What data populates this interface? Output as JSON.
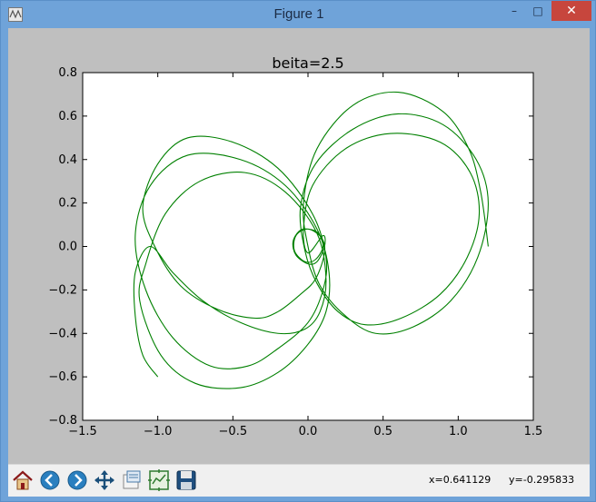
{
  "window": {
    "title": "Figure 1"
  },
  "controls": {
    "minimize": "–",
    "maximize": "□",
    "close": "✕"
  },
  "colors": {
    "line": "#008000",
    "figure_bg": "#bfbfbf",
    "axes_bg": "#ffffff"
  },
  "toolbar": {
    "tools": [
      {
        "name": "home-button",
        "icon": "home-icon"
      },
      {
        "name": "back-button",
        "icon": "arrow-left-icon"
      },
      {
        "name": "forward-button",
        "icon": "arrow-right-icon"
      },
      {
        "name": "pan-button",
        "icon": "move-icon"
      },
      {
        "name": "zoom-button",
        "icon": "zoom-rect-icon"
      },
      {
        "name": "subplots-button",
        "icon": "subplots-icon"
      },
      {
        "name": "save-button",
        "icon": "save-icon"
      }
    ]
  },
  "status": {
    "x_readout": "x=0.641129",
    "y_readout": "y=-0.295833"
  },
  "chart_data": {
    "type": "line",
    "title": "beita=2.5",
    "xlabel": "",
    "ylabel": "",
    "xlim": [
      -1.5,
      1.5
    ],
    "ylim": [
      -0.8,
      0.8
    ],
    "xticks": [
      "−1.5",
      "−1.0",
      "−0.5",
      "0.0",
      "0.5",
      "1.0",
      "1.5"
    ],
    "yticks": [
      "−0.8",
      "−0.6",
      "−0.4",
      "−0.2",
      "0.0",
      "0.2",
      "0.4",
      "0.6",
      "0.8"
    ],
    "grid": false,
    "series": [
      {
        "points": [
          [
            1.2,
            0.0
          ],
          [
            1.15,
            0.25
          ],
          [
            1.07,
            0.45
          ],
          [
            0.9,
            0.62
          ],
          [
            0.6,
            0.71
          ],
          [
            0.3,
            0.65
          ],
          [
            0.06,
            0.45
          ],
          [
            -0.03,
            0.2
          ],
          [
            0.0,
            0.0
          ],
          [
            0.08,
            -0.18
          ],
          [
            0.25,
            -0.32
          ],
          [
            0.45,
            -0.4
          ],
          [
            0.7,
            -0.37
          ],
          [
            0.95,
            -0.25
          ],
          [
            1.13,
            -0.05
          ],
          [
            1.2,
            0.2
          ],
          [
            1.12,
            0.4
          ],
          [
            0.9,
            0.56
          ],
          [
            0.6,
            0.61
          ],
          [
            0.3,
            0.54
          ],
          [
            0.05,
            0.38
          ],
          [
            -0.05,
            0.18
          ],
          [
            -0.02,
            -0.02
          ],
          [
            0.06,
            -0.17
          ],
          [
            0.2,
            -0.3
          ],
          [
            0.38,
            -0.36
          ],
          [
            0.62,
            -0.33
          ],
          [
            0.88,
            -0.22
          ],
          [
            1.06,
            -0.05
          ],
          [
            1.14,
            0.15
          ],
          [
            1.08,
            0.34
          ],
          [
            0.88,
            0.48
          ],
          [
            0.55,
            0.52
          ],
          [
            0.25,
            0.45
          ],
          [
            0.03,
            0.28
          ],
          [
            -0.03,
            0.08
          ],
          [
            0.0,
            -0.03
          ],
          [
            0.1,
            0.05
          ],
          [
            0.11,
            0.0
          ],
          [
            0.06,
            -0.07
          ],
          [
            0.0,
            -0.08
          ],
          [
            -0.08,
            -0.04
          ],
          [
            -0.1,
            0.02
          ],
          [
            -0.06,
            0.07
          ],
          [
            0.0,
            0.08
          ],
          [
            0.07,
            0.06
          ],
          [
            0.1,
            0.0
          ],
          [
            0.05,
            -0.06
          ],
          [
            -0.02,
            -0.07
          ],
          [
            -0.09,
            -0.02
          ],
          [
            -0.08,
            0.05
          ],
          [
            0.0,
            0.08
          ],
          [
            0.09,
            0.04
          ],
          [
            0.11,
            -0.03
          ],
          [
            0.05,
            -0.15
          ],
          [
            -0.05,
            -0.22
          ],
          [
            -0.2,
            -0.3
          ],
          [
            -0.35,
            -0.33
          ],
          [
            -0.6,
            -0.29
          ],
          [
            -0.85,
            -0.18
          ],
          [
            -1.02,
            0.0
          ],
          [
            -1.1,
            0.18
          ],
          [
            -1.0,
            0.38
          ],
          [
            -0.8,
            0.5
          ],
          [
            -0.5,
            0.48
          ],
          [
            -0.2,
            0.36
          ],
          [
            0.03,
            0.15
          ],
          [
            0.12,
            -0.05
          ],
          [
            0.1,
            -0.2
          ],
          [
            0.0,
            -0.35
          ],
          [
            -0.2,
            -0.47
          ],
          [
            -0.4,
            -0.55
          ],
          [
            -0.65,
            -0.55
          ],
          [
            -0.9,
            -0.42
          ],
          [
            -1.08,
            -0.2
          ],
          [
            -1.15,
            0.05
          ],
          [
            -1.05,
            0.28
          ],
          [
            -0.8,
            0.42
          ],
          [
            -0.45,
            0.4
          ],
          [
            -0.15,
            0.28
          ],
          [
            0.06,
            0.08
          ],
          [
            0.14,
            -0.12
          ],
          [
            0.12,
            -0.3
          ],
          [
            0.0,
            -0.45
          ],
          [
            -0.2,
            -0.58
          ],
          [
            -0.45,
            -0.65
          ],
          [
            -0.75,
            -0.63
          ],
          [
            -0.98,
            -0.5
          ],
          [
            -1.12,
            -0.25
          ],
          [
            -1.08,
            -0.08
          ],
          [
            -0.95,
            0.15
          ],
          [
            -0.72,
            0.3
          ],
          [
            -0.42,
            0.34
          ],
          [
            -0.15,
            0.25
          ],
          [
            0.06,
            0.06
          ],
          [
            0.12,
            -0.15
          ],
          [
            0.08,
            -0.3
          ],
          [
            -0.02,
            -0.38
          ],
          [
            -0.2,
            -0.4
          ],
          [
            -0.45,
            -0.35
          ],
          [
            -0.7,
            -0.25
          ],
          [
            -0.9,
            -0.12
          ],
          [
            -1.05,
            0.0
          ],
          [
            -1.15,
            -0.12
          ],
          [
            -1.15,
            -0.32
          ],
          [
            -1.1,
            -0.5
          ],
          [
            -1.0,
            -0.6
          ]
        ]
      }
    ]
  }
}
